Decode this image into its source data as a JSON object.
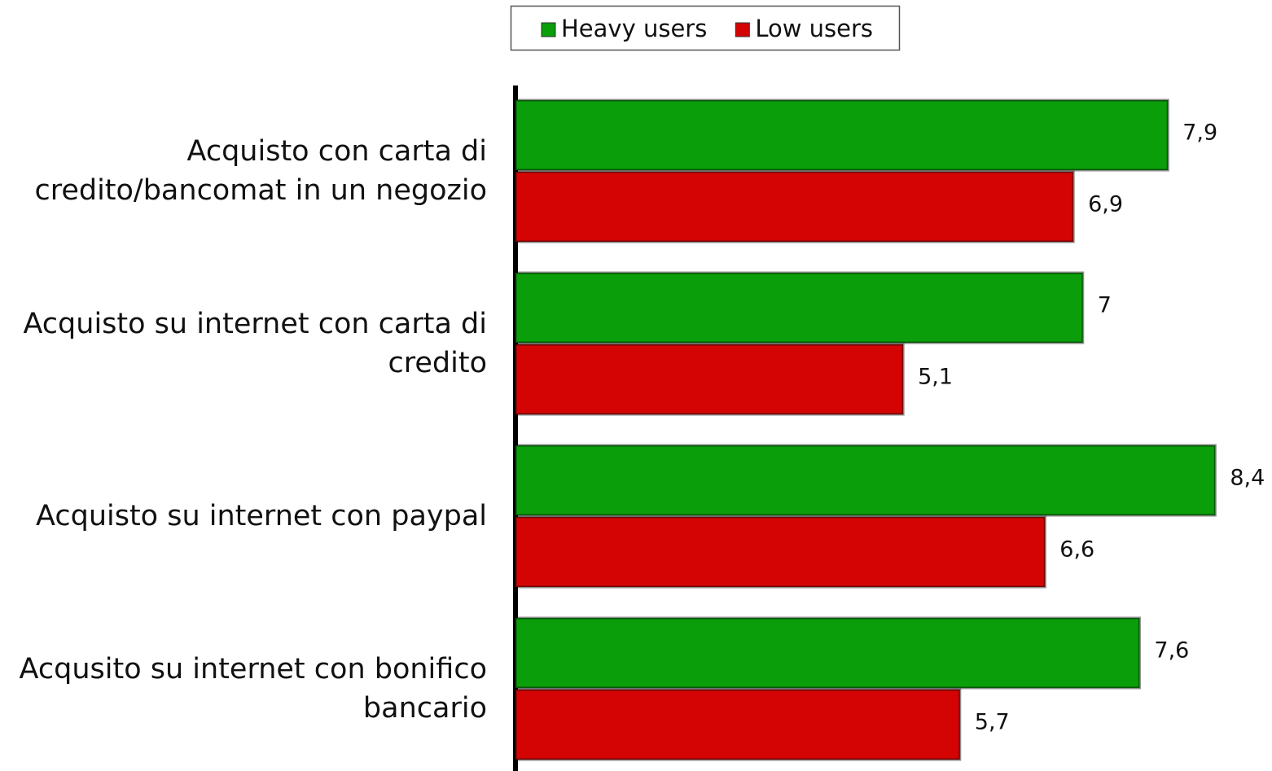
{
  "chart_data": {
    "type": "bar",
    "orientation": "horizontal",
    "categories": [
      "Acquisto con carta di credito/bancomat in un negozio",
      "Acquisto su internet con carta di credito",
      "Acquisto su internet con paypal",
      "Acqusito su internet con bonifico bancario"
    ],
    "series": [
      {
        "name": "Heavy users",
        "color": "#0a9e0a",
        "values": [
          7.9,
          7,
          8.4,
          7.6
        ],
        "value_labels": [
          "7,9",
          "7",
          "8,4",
          "7,6"
        ]
      },
      {
        "name": "Low users",
        "color": "#d40404",
        "values": [
          6.9,
          5.1,
          6.6,
          5.7
        ],
        "value_labels": [
          "6,9",
          "5,1",
          "6,6",
          "5,7"
        ]
      }
    ],
    "xlim": [
      1,
      9
    ],
    "legend": "top"
  }
}
